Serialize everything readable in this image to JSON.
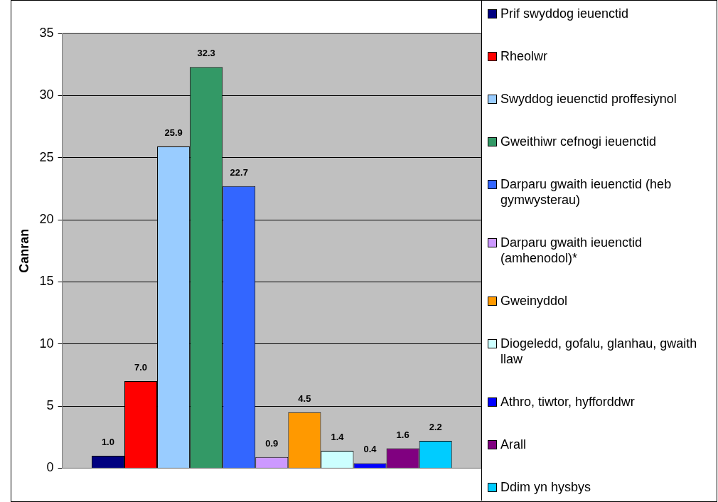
{
  "chart_data": {
    "type": "bar",
    "ylabel": "Canran",
    "categories": [
      null
    ],
    "ylim": [
      0,
      35
    ],
    "yticks": [
      0,
      5,
      10,
      15,
      20,
      25,
      30,
      35
    ],
    "grid": "y",
    "legend": "right",
    "series": [
      {
        "name": "Prif swyddog ieuenctid",
        "color": "#000080",
        "values": [
          1.0
        ],
        "value_labels": [
          "1.0"
        ]
      },
      {
        "name": "Rheolwr",
        "color": "#ff0000",
        "values": [
          7.0
        ],
        "value_labels": [
          "7.0"
        ]
      },
      {
        "name": "Swyddog ieuenctid proffesiynol",
        "color": "#99ccff",
        "values": [
          25.9
        ],
        "value_labels": [
          "25.9"
        ]
      },
      {
        "name": "Gweithiwr cefnogi ieuenctid",
        "color": "#339966",
        "values": [
          32.3
        ],
        "value_labels": [
          "32.3"
        ]
      },
      {
        "name": "Darparu gwaith ieuenctid (heb gymwysterau)",
        "color": "#3366ff",
        "values": [
          22.7
        ],
        "value_labels": [
          "22.7"
        ]
      },
      {
        "name": "Darparu gwaith ieuenctid (amhenodol)*",
        "color": "#cc99ff",
        "values": [
          0.9
        ],
        "value_labels": [
          "0.9"
        ]
      },
      {
        "name": "Gweinyddol",
        "color": "#ff9900",
        "values": [
          4.5
        ],
        "value_labels": [
          "4.5"
        ]
      },
      {
        "name": "Diogeledd, gofalu, glanhau, gwaith llaw",
        "color": "#ccffff",
        "values": [
          1.4
        ],
        "value_labels": [
          "1.4"
        ]
      },
      {
        "name": "Athro, tiwtor, hyfforddwr",
        "color": "#0000ff",
        "values": [
          0.4
        ],
        "value_labels": [
          "0.4"
        ]
      },
      {
        "name": "Arall",
        "color": "#800080",
        "values": [
          1.6
        ],
        "value_labels": [
          "1.6"
        ]
      },
      {
        "name": "Ddim yn hysbys",
        "color": "#00ccff",
        "values": [
          2.2
        ],
        "value_labels": [
          "2.2"
        ]
      }
    ]
  }
}
